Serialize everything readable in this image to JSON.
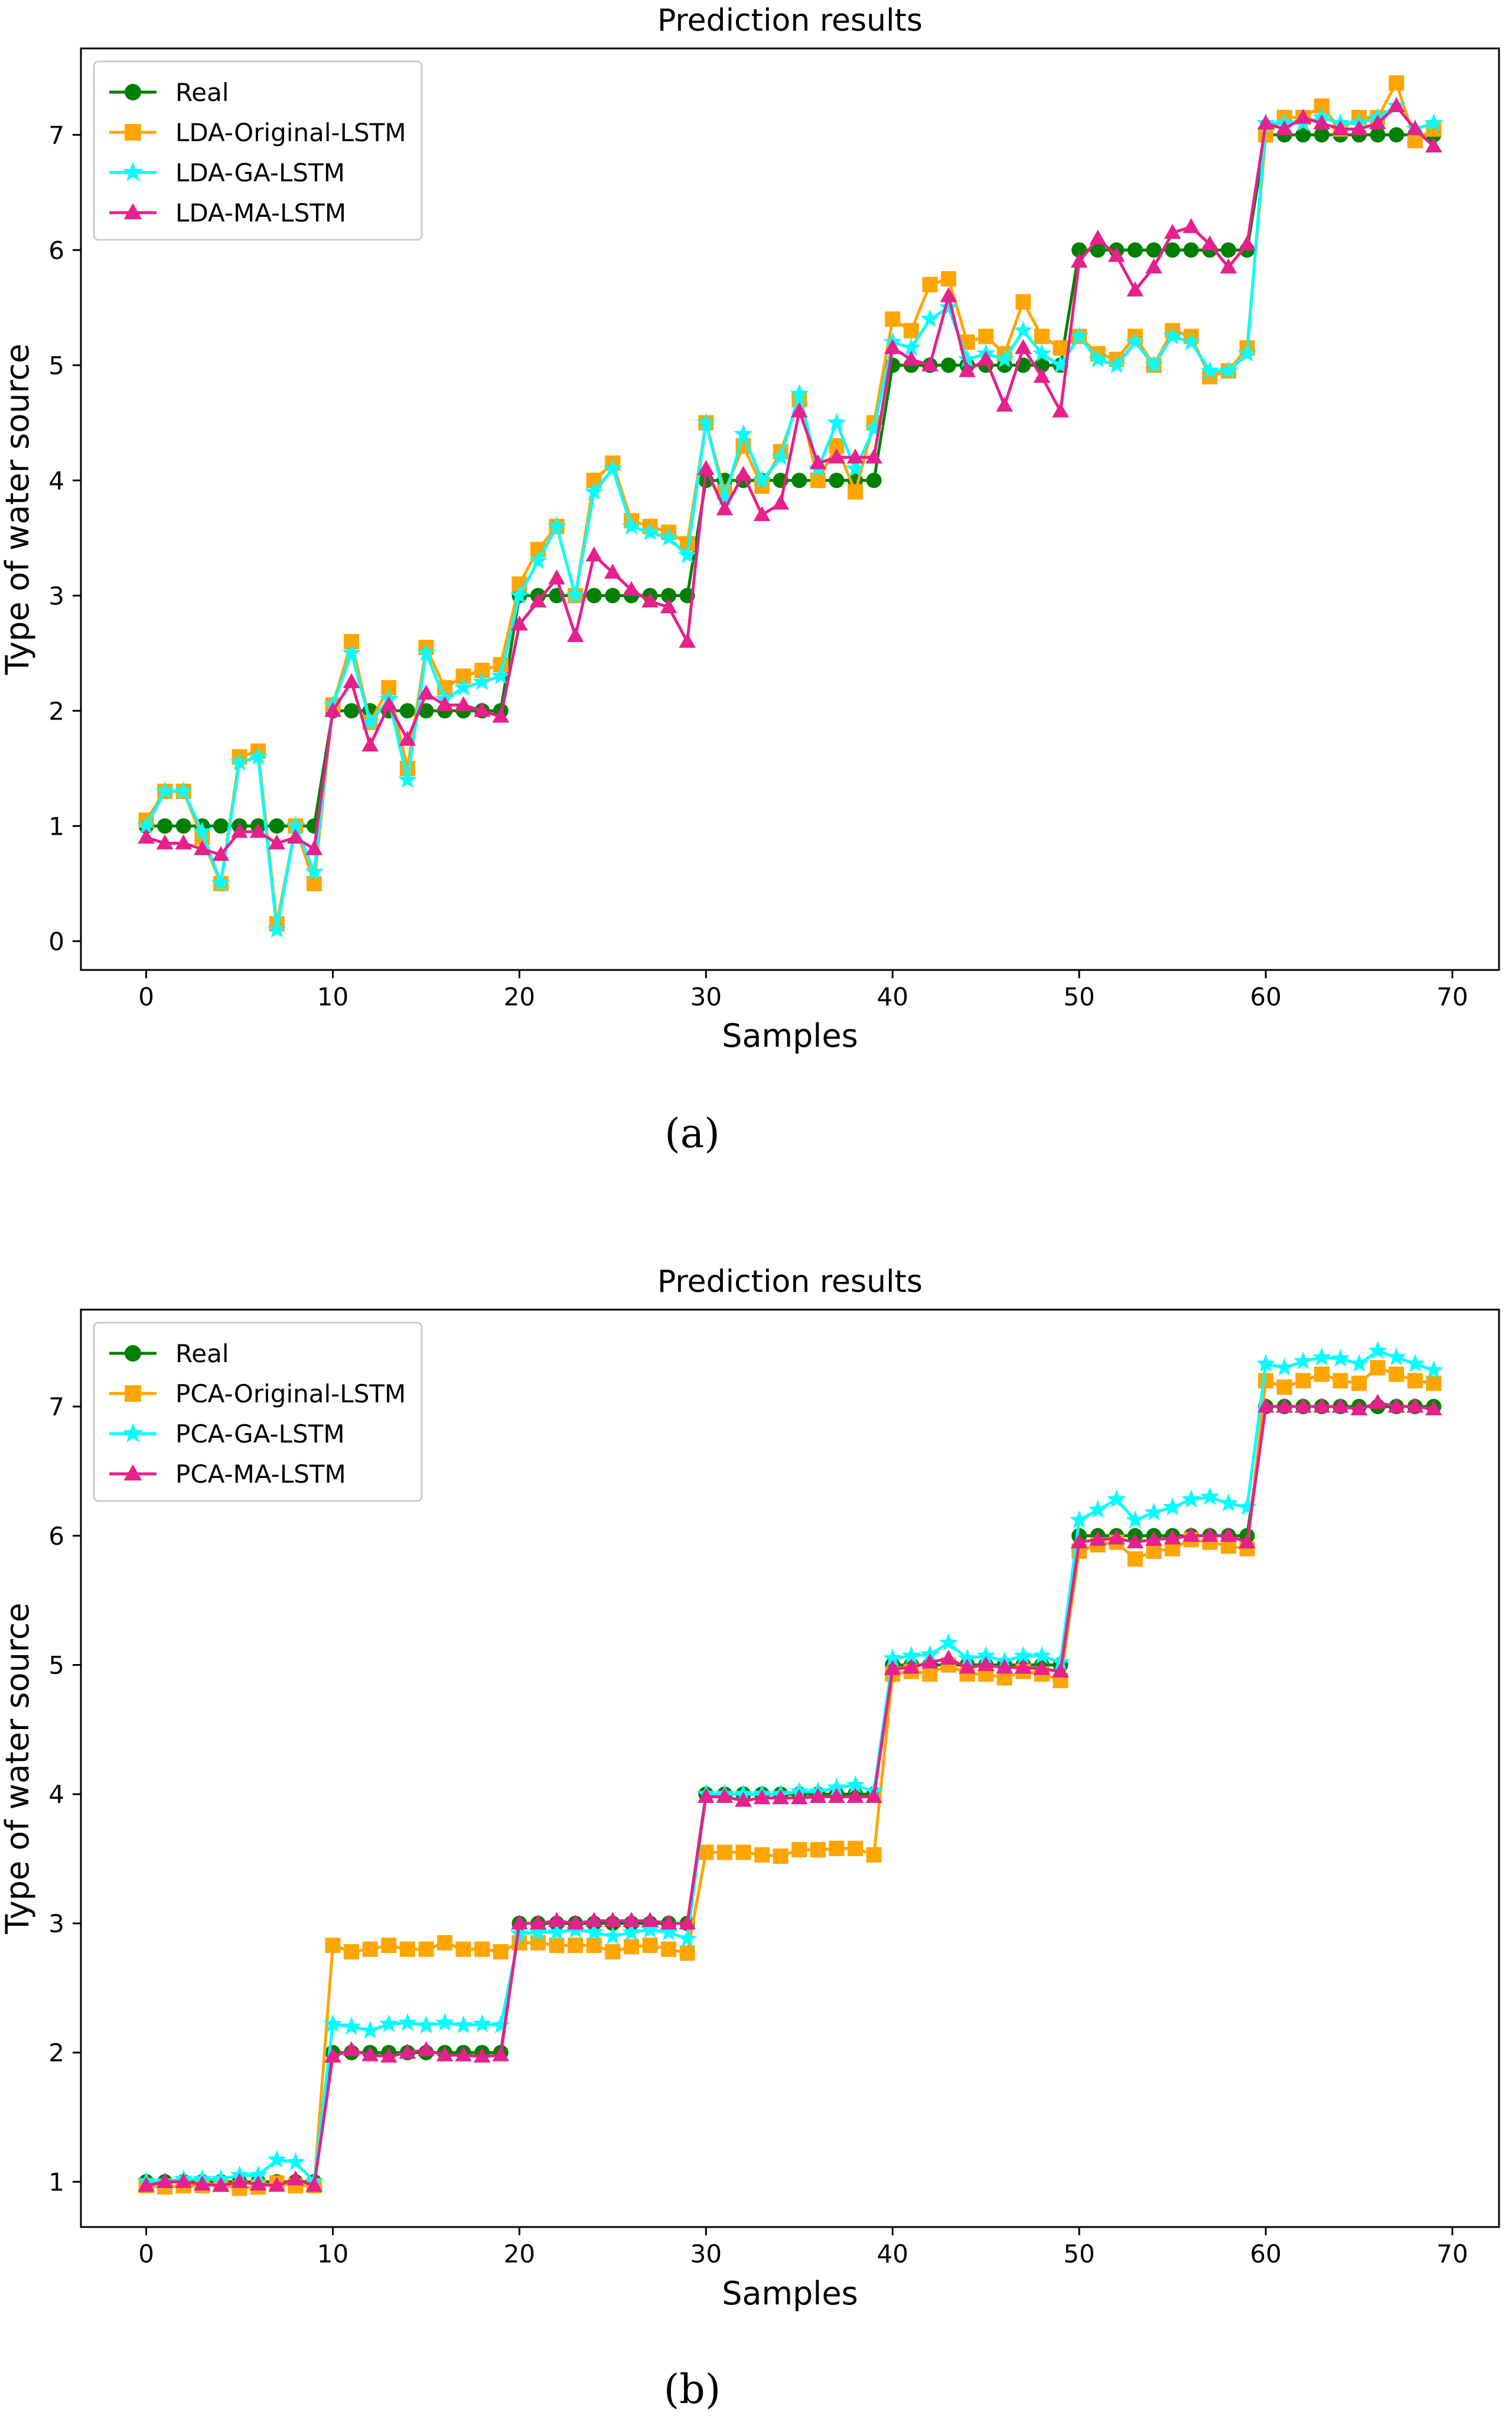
{
  "figure": {
    "panel_labels": [
      "(a)",
      "(b)"
    ]
  },
  "chart_data": [
    {
      "type": "line",
      "title": "Prediction results",
      "xlabel": "Samples",
      "ylabel": "Type of water source",
      "xlim": [
        -3.5,
        72.5
      ],
      "ylim": [
        -0.25,
        7.75
      ],
      "xticks": [
        0,
        10,
        20,
        30,
        40,
        50,
        60,
        70
      ],
      "yticks": [
        0,
        1,
        2,
        3,
        4,
        5,
        6,
        7
      ],
      "grid": false,
      "legend_position": "top-left",
      "series": [
        {
          "name": "Real",
          "color": "#008000",
          "marker": "circle",
          "values": [
            1,
            1,
            1,
            1,
            1,
            1,
            1,
            1,
            1,
            1,
            2,
            2,
            2,
            2,
            2,
            2,
            2,
            2,
            2,
            2,
            3,
            3,
            3,
            3,
            3,
            3,
            3,
            3,
            3,
            3,
            4,
            4,
            4,
            4,
            4,
            4,
            4,
            4,
            4,
            4,
            5,
            5,
            5,
            5,
            5,
            5,
            5,
            5,
            5,
            5,
            6,
            6,
            6,
            6,
            6,
            6,
            6,
            6,
            6,
            6,
            7,
            7,
            7,
            7,
            7,
            7,
            7,
            7,
            7,
            7
          ]
        },
        {
          "name": "LDA-Original-LSTM",
          "color": "#FFA500",
          "marker": "square",
          "values": [
            1.05,
            1.3,
            1.3,
            0.9,
            0.5,
            1.6,
            1.65,
            0.15,
            1.0,
            0.5,
            2.05,
            2.6,
            1.9,
            2.2,
            1.5,
            2.55,
            2.2,
            2.3,
            2.35,
            2.4,
            3.1,
            3.4,
            3.6,
            3.0,
            4.0,
            4.15,
            3.65,
            3.6,
            3.55,
            3.45,
            4.5,
            3.9,
            4.3,
            3.95,
            4.25,
            4.7,
            4.0,
            4.3,
            3.9,
            4.5,
            5.4,
            5.3,
            5.7,
            5.75,
            5.2,
            5.25,
            5.1,
            5.55,
            5.25,
            5.15,
            5.25,
            5.1,
            5.05,
            5.25,
            5.0,
            5.3,
            5.25,
            4.9,
            4.95,
            5.15,
            7.0,
            7.15,
            7.15,
            7.25,
            7.05,
            7.15,
            7.15,
            7.45,
            6.95,
            7.05
          ]
        },
        {
          "name": "LDA-GA-LSTM",
          "color": "#00FFFF",
          "marker": "star",
          "values": [
            1.0,
            1.3,
            1.3,
            0.95,
            0.5,
            1.55,
            1.6,
            0.1,
            1.0,
            0.6,
            2.05,
            2.5,
            1.9,
            2.1,
            1.4,
            2.5,
            2.1,
            2.2,
            2.25,
            2.3,
            3.0,
            3.3,
            3.6,
            3.0,
            3.9,
            4.1,
            3.6,
            3.55,
            3.5,
            3.35,
            4.5,
            3.85,
            4.4,
            4.0,
            4.2,
            4.75,
            4.1,
            4.5,
            4.1,
            4.45,
            5.2,
            5.15,
            5.4,
            5.5,
            5.05,
            5.1,
            5.05,
            5.3,
            5.1,
            5.0,
            5.25,
            5.05,
            5.0,
            5.2,
            5.0,
            5.25,
            5.2,
            4.95,
            4.95,
            5.1,
            7.1,
            7.1,
            7.1,
            7.15,
            7.1,
            7.1,
            7.15,
            7.25,
            7.05,
            7.1
          ]
        },
        {
          "name": "LDA-MA-LSTM",
          "color": "#E6208C",
          "marker": "triangle",
          "values": [
            0.9,
            0.85,
            0.85,
            0.8,
            0.75,
            0.95,
            0.95,
            0.85,
            0.9,
            0.8,
            2.0,
            2.25,
            1.7,
            2.05,
            1.75,
            2.15,
            2.05,
            2.05,
            2.0,
            1.95,
            2.75,
            2.95,
            3.15,
            2.65,
            3.35,
            3.2,
            3.05,
            2.95,
            2.9,
            2.6,
            4.1,
            3.75,
            4.05,
            3.7,
            3.8,
            4.6,
            4.15,
            4.2,
            4.2,
            4.2,
            5.15,
            5.05,
            5.0,
            5.6,
            4.95,
            5.05,
            4.65,
            5.15,
            4.9,
            4.6,
            5.9,
            6.1,
            5.95,
            5.65,
            5.85,
            6.15,
            6.2,
            6.05,
            5.85,
            6.05,
            7.1,
            7.05,
            7.15,
            7.1,
            7.05,
            7.05,
            7.1,
            7.25,
            7.05,
            6.9
          ]
        }
      ]
    },
    {
      "type": "line",
      "title": "Prediction results",
      "xlabel": "Samples",
      "ylabel": "Type of water source",
      "xlim": [
        -3.5,
        72.5
      ],
      "ylim": [
        0.65,
        7.75
      ],
      "xticks": [
        0,
        10,
        20,
        30,
        40,
        50,
        60,
        70
      ],
      "yticks": [
        1,
        2,
        3,
        4,
        5,
        6,
        7
      ],
      "grid": false,
      "legend_position": "top-left",
      "series": [
        {
          "name": "Real",
          "color": "#008000",
          "marker": "circle",
          "values": [
            1,
            1,
            1,
            1,
            1,
            1,
            1,
            1,
            1,
            1,
            2,
            2,
            2,
            2,
            2,
            2,
            2,
            2,
            2,
            2,
            3,
            3,
            3,
            3,
            3,
            3,
            3,
            3,
            3,
            3,
            4,
            4,
            4,
            4,
            4,
            4,
            4,
            4,
            4,
            4,
            5,
            5,
            5,
            5,
            5,
            5,
            5,
            5,
            5,
            5,
            6,
            6,
            6,
            6,
            6,
            6,
            6,
            6,
            6,
            6,
            7,
            7,
            7,
            7,
            7,
            7,
            7,
            7,
            7,
            7
          ]
        },
        {
          "name": "PCA-Original-LSTM",
          "color": "#FFA500",
          "marker": "square",
          "values": [
            0.97,
            0.96,
            0.97,
            0.97,
            0.98,
            0.95,
            0.96,
            0.99,
            0.97,
            0.97,
            2.83,
            2.78,
            2.8,
            2.83,
            2.8,
            2.8,
            2.85,
            2.8,
            2.8,
            2.78,
            2.85,
            2.85,
            2.83,
            2.83,
            2.83,
            2.78,
            2.82,
            2.83,
            2.8,
            2.77,
            3.55,
            3.55,
            3.55,
            3.53,
            3.52,
            3.57,
            3.57,
            3.58,
            3.58,
            3.53,
            4.93,
            4.95,
            4.93,
            5.0,
            4.93,
            4.93,
            4.9,
            4.95,
            4.93,
            4.88,
            5.88,
            5.93,
            5.95,
            5.82,
            5.88,
            5.9,
            5.97,
            5.95,
            5.92,
            5.9,
            7.2,
            7.15,
            7.2,
            7.25,
            7.2,
            7.18,
            7.3,
            7.25,
            7.2,
            7.18
          ]
        },
        {
          "name": "PCA-GA-LSTM",
          "color": "#00FFFF",
          "marker": "star",
          "values": [
            1.0,
            1.0,
            1.02,
            1.02,
            1.02,
            1.05,
            1.05,
            1.17,
            1.15,
            1.0,
            2.22,
            2.2,
            2.17,
            2.22,
            2.23,
            2.21,
            2.23,
            2.21,
            2.22,
            2.21,
            2.92,
            2.93,
            2.93,
            2.95,
            2.93,
            2.9,
            2.93,
            2.95,
            2.93,
            2.88,
            4.0,
            4.0,
            4.0,
            4.0,
            4.0,
            4.02,
            4.02,
            4.05,
            4.07,
            4.02,
            5.05,
            5.07,
            5.08,
            5.17,
            5.05,
            5.07,
            5.03,
            5.07,
            5.07,
            5.02,
            6.12,
            6.2,
            6.28,
            6.12,
            6.18,
            6.22,
            6.28,
            6.3,
            6.25,
            6.22,
            7.33,
            7.3,
            7.35,
            7.38,
            7.37,
            7.33,
            7.43,
            7.38,
            7.33,
            7.28
          ]
        },
        {
          "name": "PCA-MA-LSTM",
          "color": "#E6208C",
          "marker": "triangle",
          "values": [
            0.97,
            1.0,
            1.0,
            0.98,
            0.97,
            1.0,
            0.98,
            0.97,
            1.02,
            0.97,
            1.97,
            2.02,
            1.98,
            1.97,
            2.0,
            2.02,
            1.98,
            1.98,
            1.97,
            1.98,
            3.0,
            3.0,
            3.02,
            3.0,
            3.02,
            3.02,
            3.02,
            3.02,
            3.0,
            3.0,
            3.98,
            3.98,
            3.95,
            3.97,
            3.97,
            3.97,
            3.98,
            3.98,
            3.98,
            3.98,
            4.97,
            4.98,
            5.02,
            5.05,
            4.98,
            5.0,
            4.98,
            4.98,
            4.97,
            4.95,
            5.95,
            5.97,
            5.98,
            5.95,
            5.97,
            5.98,
            6.0,
            6.0,
            6.0,
            5.95,
            7.0,
            7.0,
            7.0,
            7.0,
            7.0,
            6.98,
            7.03,
            7.0,
            7.0,
            6.98
          ]
        }
      ]
    }
  ]
}
